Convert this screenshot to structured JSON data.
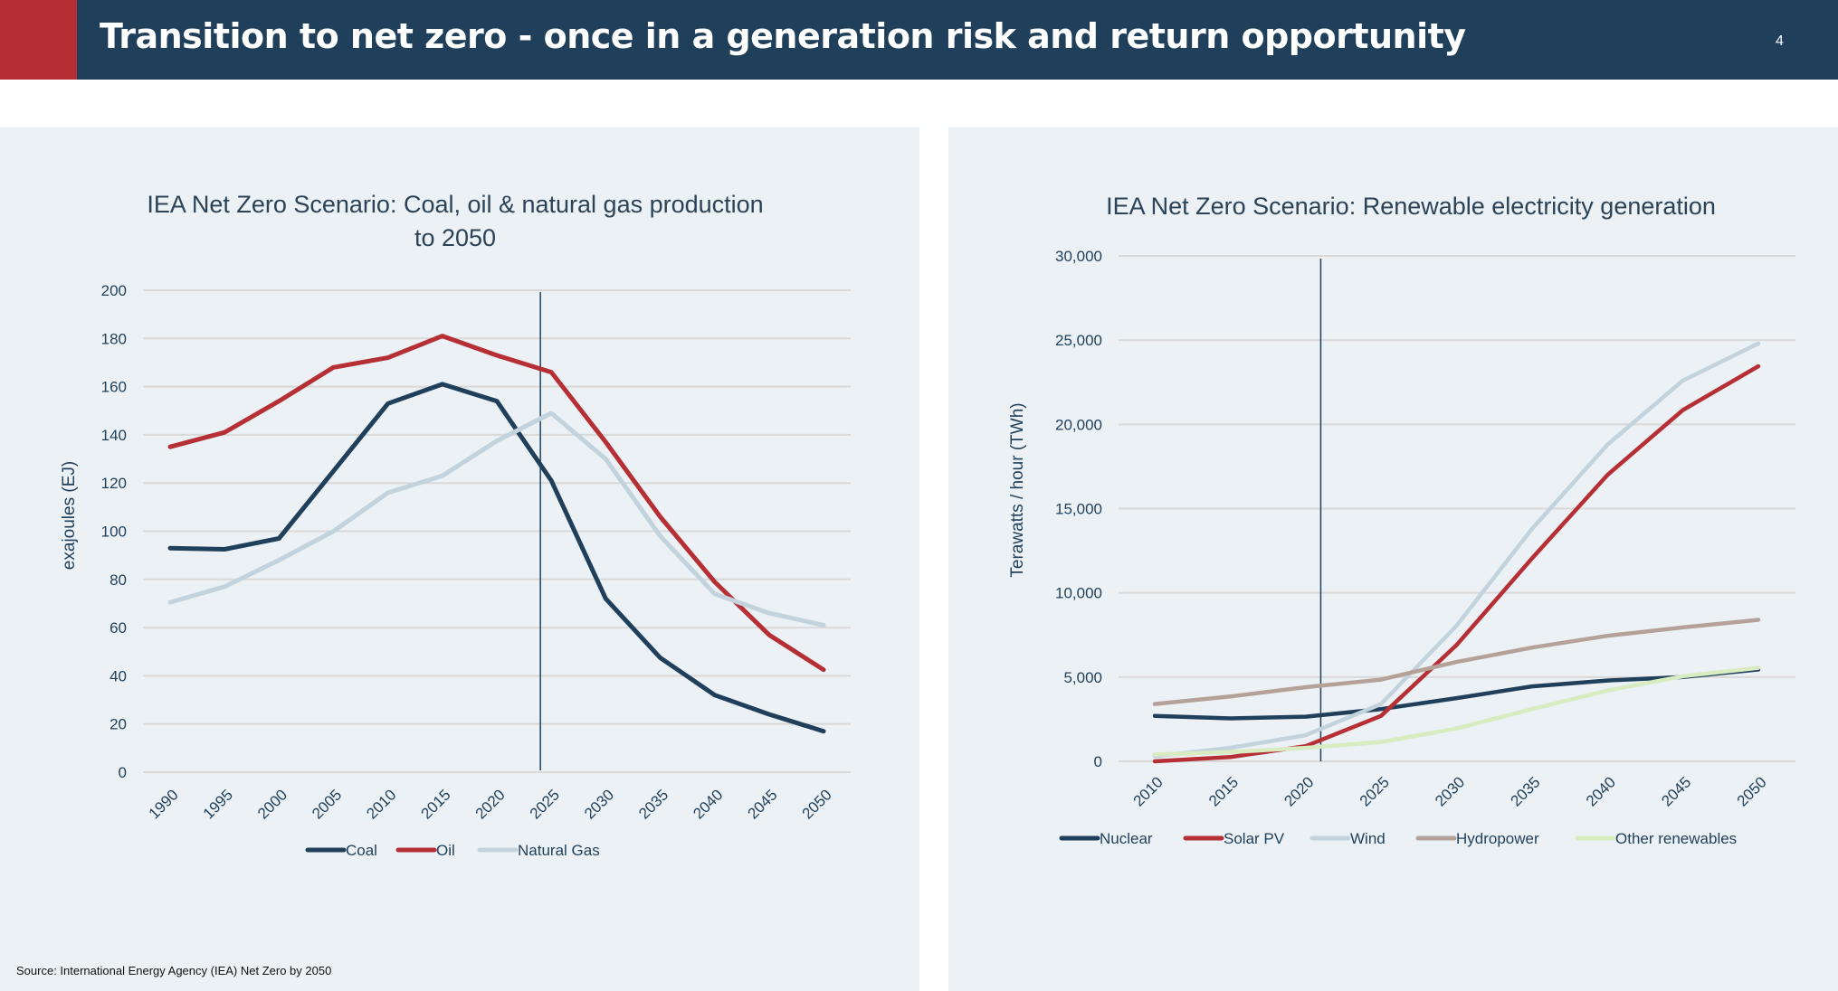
{
  "header": {
    "title": "Transition to net zero - once in a generation risk and return opportunity",
    "page_number": "4"
  },
  "footer": {
    "source": "Source: International Energy Agency (IEA) Net Zero by 2050"
  },
  "colors": {
    "header_bg": "#1f3f5a",
    "accent_red": "#b52f35",
    "panel_bg": "#ecf1f5"
  },
  "chart_data": [
    {
      "type": "line",
      "title": "IEA Net Zero Scenario: Coal, oil & natural gas production to 2050",
      "title_lines": [
        "IEA Net Zero Scenario: Coal, oil & natural gas production",
        "to 2050"
      ],
      "xlabel": "",
      "ylabel": "exajoules (EJ)",
      "x": [
        "1990",
        "1995",
        "2000",
        "2005",
        "2010",
        "2015",
        "2020",
        "2025",
        "2030",
        "2035",
        "2040",
        "2045",
        "2050"
      ],
      "ylim": [
        0,
        200
      ],
      "yticks": [
        0,
        20,
        40,
        60,
        80,
        100,
        120,
        140,
        160,
        180,
        200
      ],
      "ytick_labels": [
        "0",
        "20",
        "40",
        "60",
        "80",
        "100",
        "120",
        "140",
        "160",
        "180",
        "200"
      ],
      "grid": true,
      "legend_position": "bottom",
      "reference_line_x": 2024,
      "series": [
        {
          "name": "Coal",
          "color": "#1f3f5a",
          "values": [
            93,
            92.5,
            97,
            125,
            153,
            161,
            154,
            121,
            72,
            47.5,
            32,
            24,
            17
          ]
        },
        {
          "name": "Oil",
          "color": "#b52f35",
          "values": [
            135,
            141,
            154,
            168,
            172,
            181,
            173,
            166,
            137,
            106,
            79,
            57,
            42.5
          ]
        },
        {
          "name": "Natural Gas",
          "color": "#c3d3dd",
          "values": [
            70.5,
            77,
            88,
            100,
            116,
            123,
            137.5,
            149,
            130,
            98,
            74,
            66,
            61
          ]
        }
      ]
    },
    {
      "type": "line",
      "title": "IEA Net Zero Scenario: Renewable electricity generation",
      "title_lines": [
        "IEA Net Zero Scenario: Renewable electricity generation"
      ],
      "xlabel": "",
      "ylabel": "Terawatts / hour (TWh)",
      "x": [
        "2010",
        "2015",
        "2020",
        "2025",
        "2030",
        "2035",
        "2040",
        "2045",
        "2050"
      ],
      "ylim": [
        0,
        30000
      ],
      "yticks": [
        0,
        5000,
        10000,
        15000,
        20000,
        25000,
        30000
      ],
      "ytick_labels": [
        "0",
        "5,000",
        "10,000",
        "15,000",
        "20,000",
        "25,000",
        "30,000"
      ],
      "grid": true,
      "legend_position": "bottom",
      "reference_line_x": 2021,
      "series": [
        {
          "name": "Nuclear",
          "color": "#1f3f5a",
          "values": [
            2700,
            2550,
            2650,
            3100,
            3750,
            4450,
            4800,
            5000,
            5450
          ]
        },
        {
          "name": "Solar PV",
          "color": "#b52f35",
          "values": [
            0,
            250,
            900,
            2700,
            6900,
            12050,
            17000,
            20850,
            23450
          ]
        },
        {
          "name": "Wind",
          "color": "#c3d3dd",
          "values": [
            300,
            800,
            1550,
            3400,
            8050,
            13800,
            18800,
            22600,
            24800
          ]
        },
        {
          "name": "Hydropower",
          "color": "#b4a299",
          "values": [
            3400,
            3850,
            4400,
            4850,
            5900,
            6750,
            7450,
            7950,
            8400
          ]
        },
        {
          "name": "Other renewables",
          "color": "#d9ebc0",
          "values": [
            400,
            550,
            800,
            1150,
            1950,
            3100,
            4200,
            5050,
            5550
          ]
        }
      ]
    }
  ]
}
